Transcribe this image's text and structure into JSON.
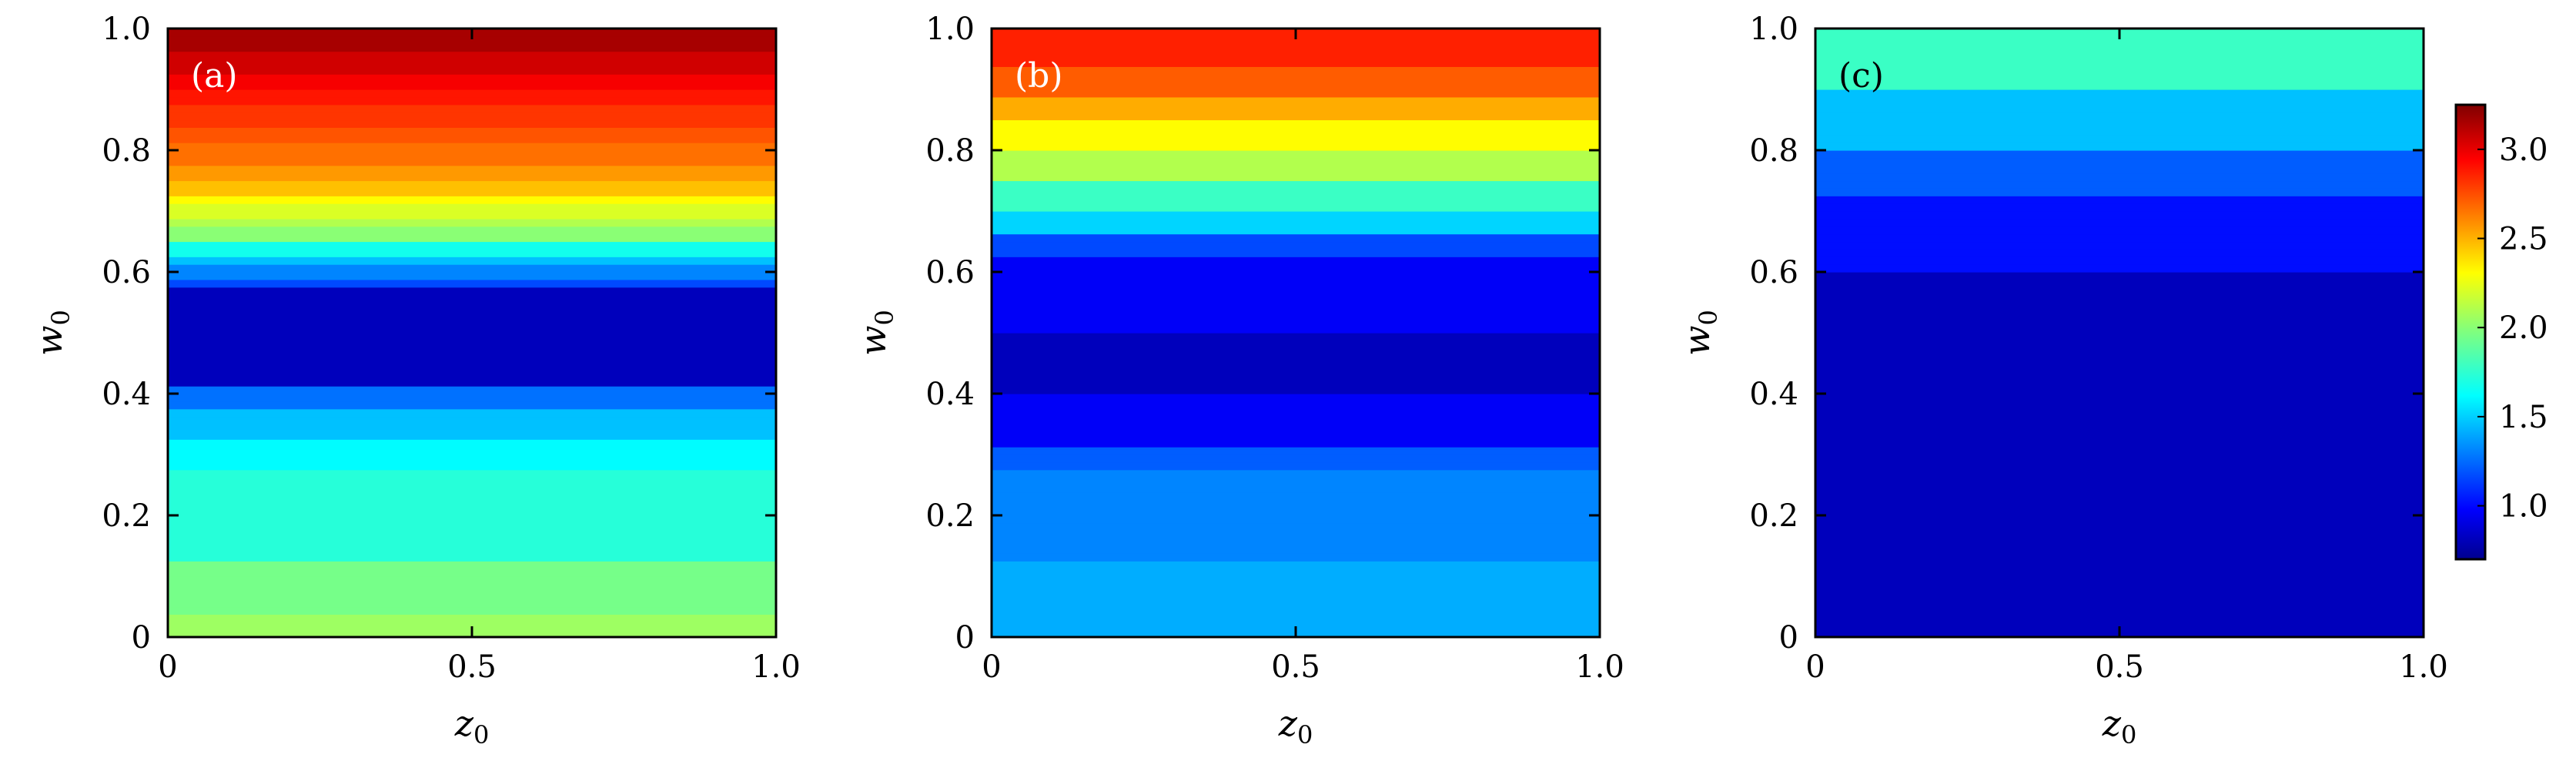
{
  "chart_data": [
    {
      "type": "heatmap",
      "panel_label": "(a)",
      "xlabel": "z",
      "xlabel_sub": "0",
      "ylabel": "w",
      "ylabel_sub": "0",
      "xlim": [
        0,
        1
      ],
      "ylim": [
        0,
        1
      ],
      "x_ticks": [
        "0",
        "0.5",
        "1.0"
      ],
      "y_ticks": [
        "0",
        "0.2",
        "0.4",
        "0.6",
        "0.8",
        "1.0"
      ],
      "description_bands_w0_value": [
        [
          0.0,
          0.04,
          2.05
        ],
        [
          0.04,
          0.13,
          1.95
        ],
        [
          0.13,
          0.28,
          1.75
        ],
        [
          0.28,
          0.33,
          1.65
        ],
        [
          0.33,
          0.37,
          1.5
        ],
        [
          0.37,
          0.41,
          1.3
        ],
        [
          0.41,
          0.57,
          0.85
        ],
        [
          0.57,
          0.59,
          1.2
        ],
        [
          0.59,
          0.61,
          1.35
        ],
        [
          0.61,
          0.63,
          1.5
        ],
        [
          0.63,
          0.65,
          1.7
        ],
        [
          0.65,
          0.67,
          2.0
        ],
        [
          0.67,
          0.69,
          2.1
        ],
        [
          0.69,
          0.71,
          2.2
        ],
        [
          0.71,
          0.73,
          2.3
        ],
        [
          0.73,
          0.75,
          2.45
        ],
        [
          0.75,
          0.78,
          2.55
        ],
        [
          0.78,
          0.81,
          2.65
        ],
        [
          0.81,
          0.84,
          2.72
        ],
        [
          0.84,
          0.87,
          2.8
        ],
        [
          0.87,
          0.9,
          2.88
        ],
        [
          0.9,
          0.93,
          2.95
        ],
        [
          0.93,
          0.96,
          3.05
        ],
        [
          0.96,
          1.0,
          3.15
        ]
      ]
    },
    {
      "type": "heatmap",
      "panel_label": "(b)",
      "xlabel": "z",
      "xlabel_sub": "0",
      "ylabel": "w",
      "ylabel_sub": "0",
      "xlim": [
        0,
        1
      ],
      "ylim": [
        0,
        1
      ],
      "x_ticks": [
        "0",
        "0.5",
        "1.0"
      ],
      "y_ticks": [
        "0",
        "0.2",
        "0.4",
        "0.6",
        "0.8",
        "1.0"
      ],
      "description_bands_w0_value": [
        [
          0.0,
          0.13,
          1.45
        ],
        [
          0.13,
          0.28,
          1.35
        ],
        [
          0.28,
          0.31,
          1.25
        ],
        [
          0.31,
          0.4,
          1.0
        ],
        [
          0.4,
          0.5,
          0.85
        ],
        [
          0.5,
          0.62,
          1.0
        ],
        [
          0.62,
          0.66,
          1.2
        ],
        [
          0.66,
          0.7,
          1.55
        ],
        [
          0.7,
          0.75,
          1.8
        ],
        [
          0.75,
          0.8,
          2.1
        ],
        [
          0.8,
          0.85,
          2.3
        ],
        [
          0.85,
          0.89,
          2.5
        ],
        [
          0.89,
          0.94,
          2.7
        ],
        [
          0.94,
          1.0,
          2.85
        ]
      ]
    },
    {
      "type": "heatmap",
      "panel_label": "(c)",
      "xlabel": "z",
      "xlabel_sub": "0",
      "ylabel": "w",
      "ylabel_sub": "0",
      "xlim": [
        0,
        1
      ],
      "ylim": [
        0,
        1
      ],
      "x_ticks": [
        "0",
        "0.5",
        "1.0"
      ],
      "y_ticks": [
        "0",
        "0.2",
        "0.4",
        "0.6",
        "0.8",
        "1.0"
      ],
      "description_bands_w0_value": [
        [
          0.0,
          0.6,
          0.85
        ],
        [
          0.6,
          0.72,
          1.05
        ],
        [
          0.72,
          0.8,
          1.25
        ],
        [
          0.8,
          0.9,
          1.5
        ],
        [
          0.9,
          1.0,
          1.8
        ]
      ],
      "colorbar": {
        "range": [
          0.7,
          3.25
        ],
        "ticks": [
          "1.0",
          "1.5",
          "2.0",
          "2.5",
          "3.0"
        ]
      }
    }
  ]
}
